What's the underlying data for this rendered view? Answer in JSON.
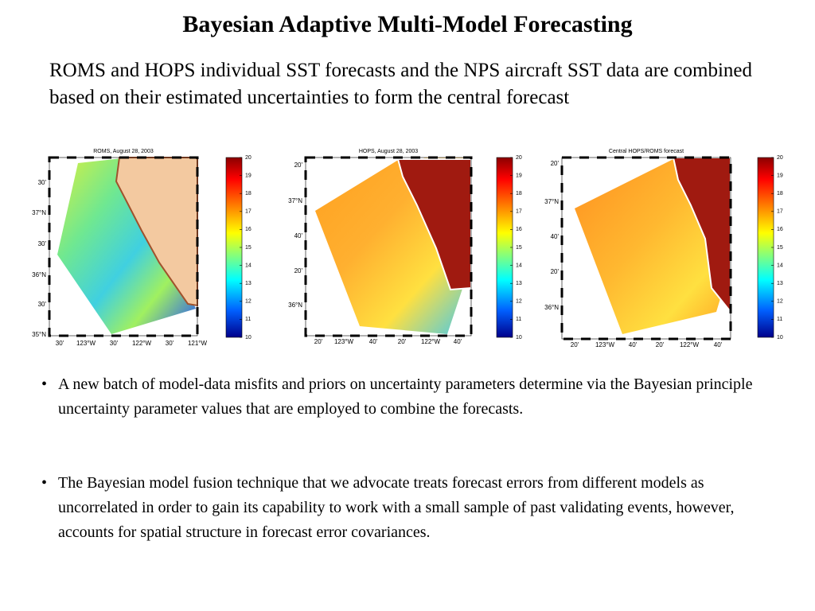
{
  "header": {
    "title": "Bayesian Adaptive Multi-Model Forecasting"
  },
  "intro": "ROMS and HOPS individual SST forecasts and the NPS aircraft SST data are combined based on their estimated uncertainties to form the central forecast",
  "panels": [
    {
      "title": "ROMS, August 28, 2003",
      "y_labels": [
        "30'",
        "37°N",
        "30'",
        "36°N",
        "30'",
        "35°N"
      ],
      "x_labels": [
        "30'",
        "123°W",
        "30'",
        "122°W",
        "30'",
        "121°W"
      ],
      "colorbar_ticks": [
        10,
        11,
        12,
        13,
        14,
        15,
        16,
        17,
        18,
        19,
        20
      ]
    },
    {
      "title": "HOPS, August 28, 2003",
      "y_labels": [
        "20'",
        "37°N",
        "40'",
        "20'",
        "36°N"
      ],
      "x_labels": [
        "20'",
        "123°W",
        "40'",
        "20'",
        "122°W",
        "40'"
      ],
      "colorbar_ticks": [
        10,
        11,
        12,
        13,
        14,
        15,
        16,
        17,
        18,
        19,
        20
      ]
    },
    {
      "title": "Central HOPS/ROMS forecast",
      "y_labels": [
        "20'",
        "37°N",
        "40'",
        "20'",
        "36°N"
      ],
      "x_labels": [
        "20'",
        "123°W",
        "40'",
        "20'",
        "122°W",
        "40'"
      ],
      "colorbar_ticks": [
        10,
        11,
        12,
        13,
        14,
        15,
        16,
        17,
        18,
        19,
        20
      ]
    }
  ],
  "bullets": [
    "A new batch of model-data misfits and priors on uncertainty parameters determine via the Bayesian principle uncertainty parameter values that are employed to combine the forecasts.",
    "The Bayesian model fusion technique that we advocate treats forecast errors from different models as uncorrelated in order to gain its capability to work with a small sample of past validating events, however, accounts for spatial structure in forecast error covariances."
  ]
}
